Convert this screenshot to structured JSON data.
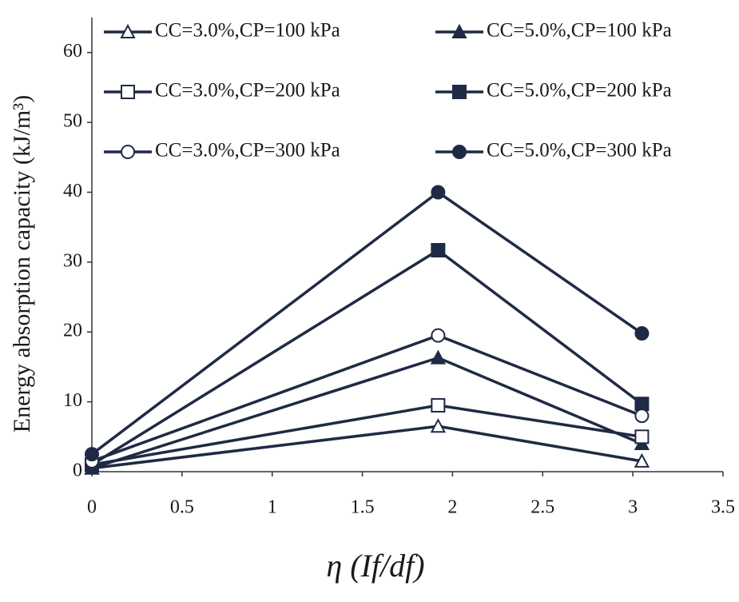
{
  "chart_data": {
    "type": "line",
    "x_label": "η (If/df)",
    "y_label": "Energy absorption capacity (kJ/m³)",
    "x": [
      0,
      1.92,
      3.05
    ],
    "series": [
      {
        "name": "CC=3.0%,CP=100 kPa",
        "color": "#1f2a44",
        "marker": "triangle",
        "filled": false,
        "values": [
          0.5,
          6.5,
          1.5
        ]
      },
      {
        "name": "CC=5.0%,CP=100 kPa",
        "color": "#1f2a44",
        "marker": "triangle",
        "filled": true,
        "values": [
          0.5,
          16.3,
          4
        ]
      },
      {
        "name": "CC=3.0%,CP=200 kPa",
        "color": "#1f2a44",
        "marker": "square",
        "filled": false,
        "values": [
          1,
          9.5,
          5
        ]
      },
      {
        "name": "CC=5.0%,CP=200 kPa",
        "color": "#1f2a44",
        "marker": "square",
        "filled": true,
        "values": [
          1,
          31.7,
          9.7
        ]
      },
      {
        "name": "CC=3.0%,CP=300 kPa",
        "color": "#1f2a44",
        "marker": "circle",
        "filled": false,
        "values": [
          1.5,
          19.5,
          8
        ]
      },
      {
        "name": "CC=5.0%,CP=300 kPa",
        "color": "#1f2a44",
        "marker": "circle",
        "filled": true,
        "values": [
          2.5,
          40,
          19.8
        ]
      }
    ],
    "xlim": [
      0,
      3.5
    ],
    "xticks": [
      0,
      0.5,
      1,
      1.5,
      2,
      2.5,
      3,
      3.5
    ],
    "ylim": [
      0,
      65
    ],
    "yticks": [
      0,
      10,
      20,
      30,
      40,
      50,
      60
    ],
    "grid": false,
    "legend": "top"
  }
}
